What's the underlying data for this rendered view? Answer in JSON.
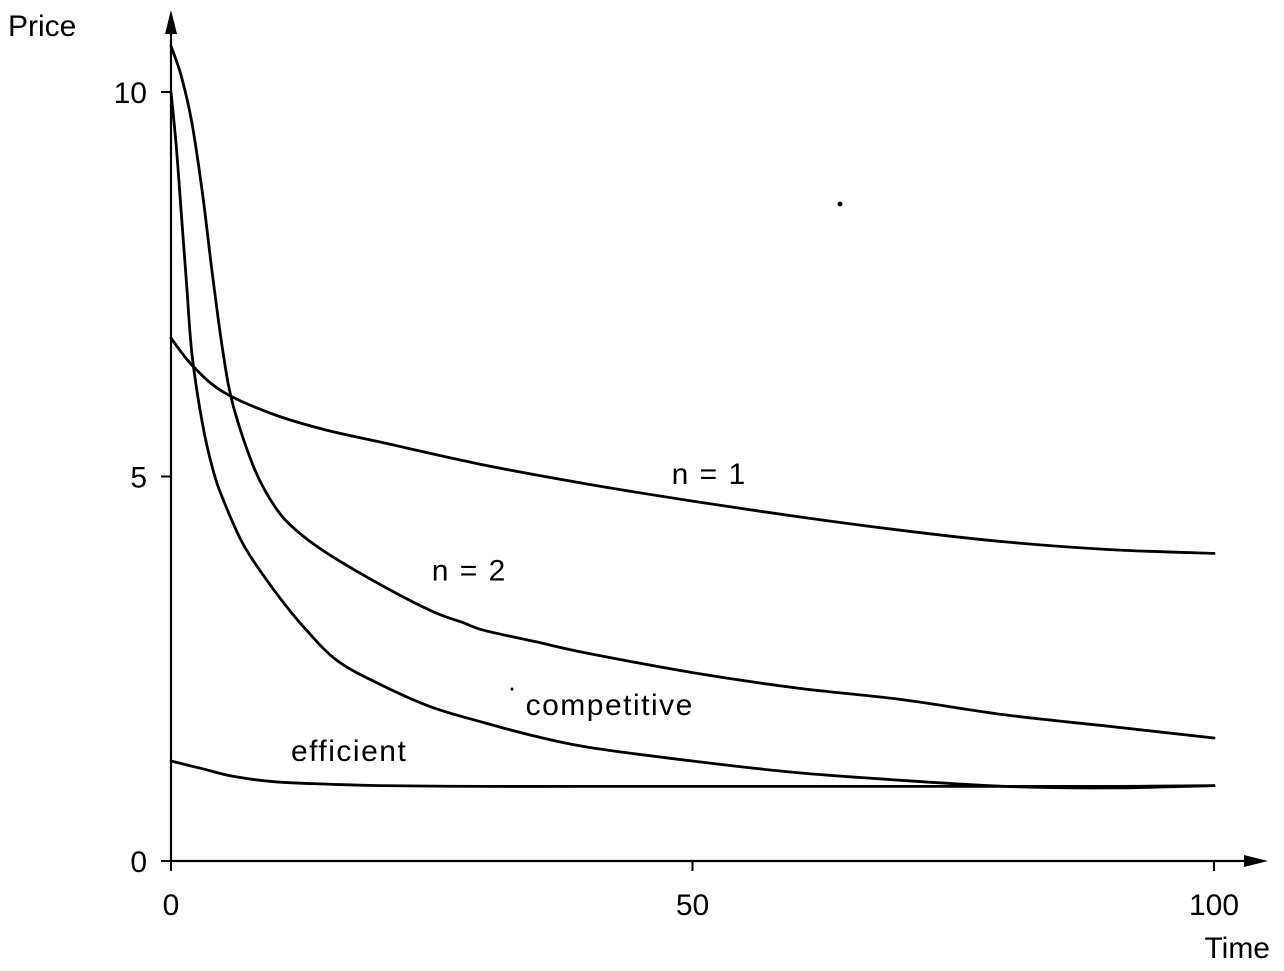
{
  "chart_data": {
    "type": "line",
    "title": "",
    "xlabel": "Time",
    "ylabel": "Price",
    "xlim": [
      0,
      100
    ],
    "ylim": [
      0,
      10.6
    ],
    "xticks": [
      "0",
      "50",
      "100"
    ],
    "xtick_values": [
      0,
      50,
      100
    ],
    "yticks": [
      "0",
      "5",
      "10"
    ],
    "ytick_values": [
      0,
      5,
      10
    ],
    "grid": false,
    "legend": "none (series labeled inline)",
    "series": [
      {
        "name": "n = 1",
        "x": [
          0,
          2,
          5,
          10,
          15,
          20,
          30,
          40,
          50,
          60,
          70,
          80,
          90,
          100
        ],
        "y": [
          6.8,
          6.45,
          6.1,
          5.8,
          5.6,
          5.45,
          5.15,
          4.9,
          4.68,
          4.48,
          4.3,
          4.15,
          4.05,
          4.0
        ]
      },
      {
        "name": "n = 2",
        "x": [
          0,
          1,
          2,
          3,
          4,
          5,
          6,
          8,
          10,
          12,
          15,
          20,
          25,
          28,
          30,
          35,
          40,
          50,
          60,
          70,
          80,
          90,
          100
        ],
        "y": [
          10.6,
          10.2,
          9.6,
          8.7,
          7.6,
          6.6,
          5.9,
          5.1,
          4.6,
          4.3,
          4.0,
          3.6,
          3.25,
          3.1,
          3.0,
          2.85,
          2.7,
          2.45,
          2.25,
          2.1,
          1.9,
          1.75,
          1.6
        ]
      },
      {
        "name": "competitive",
        "x": [
          0,
          0.5,
          1,
          1.5,
          2,
          3,
          4,
          5,
          7,
          10,
          13,
          16,
          20,
          25,
          30,
          35,
          40,
          50,
          60,
          70,
          80,
          90,
          100
        ],
        "y": [
          10.0,
          9.3,
          8.4,
          7.5,
          6.6,
          5.7,
          5.1,
          4.7,
          4.1,
          3.5,
          3.0,
          2.6,
          2.3,
          2.0,
          1.8,
          1.62,
          1.48,
          1.3,
          1.15,
          1.05,
          0.97,
          0.95,
          0.98
        ]
      },
      {
        "name": "efficient",
        "x": [
          0,
          3,
          6,
          10,
          15,
          20,
          30,
          40,
          50,
          60,
          70,
          80,
          90,
          100
        ],
        "y": [
          1.3,
          1.2,
          1.1,
          1.03,
          1.0,
          0.98,
          0.97,
          0.97,
          0.97,
          0.97,
          0.97,
          0.97,
          0.97,
          0.98
        ]
      }
    ],
    "annotations": [
      {
        "text": "n = 1",
        "x": 48,
        "y": 4.9
      },
      {
        "text": "n = 2",
        "x": 25,
        "y": 3.65
      },
      {
        "text": "competitive",
        "x": 34,
        "y": 1.9
      },
      {
        "text": "efficient",
        "x": 11.5,
        "y": 1.3
      }
    ]
  }
}
